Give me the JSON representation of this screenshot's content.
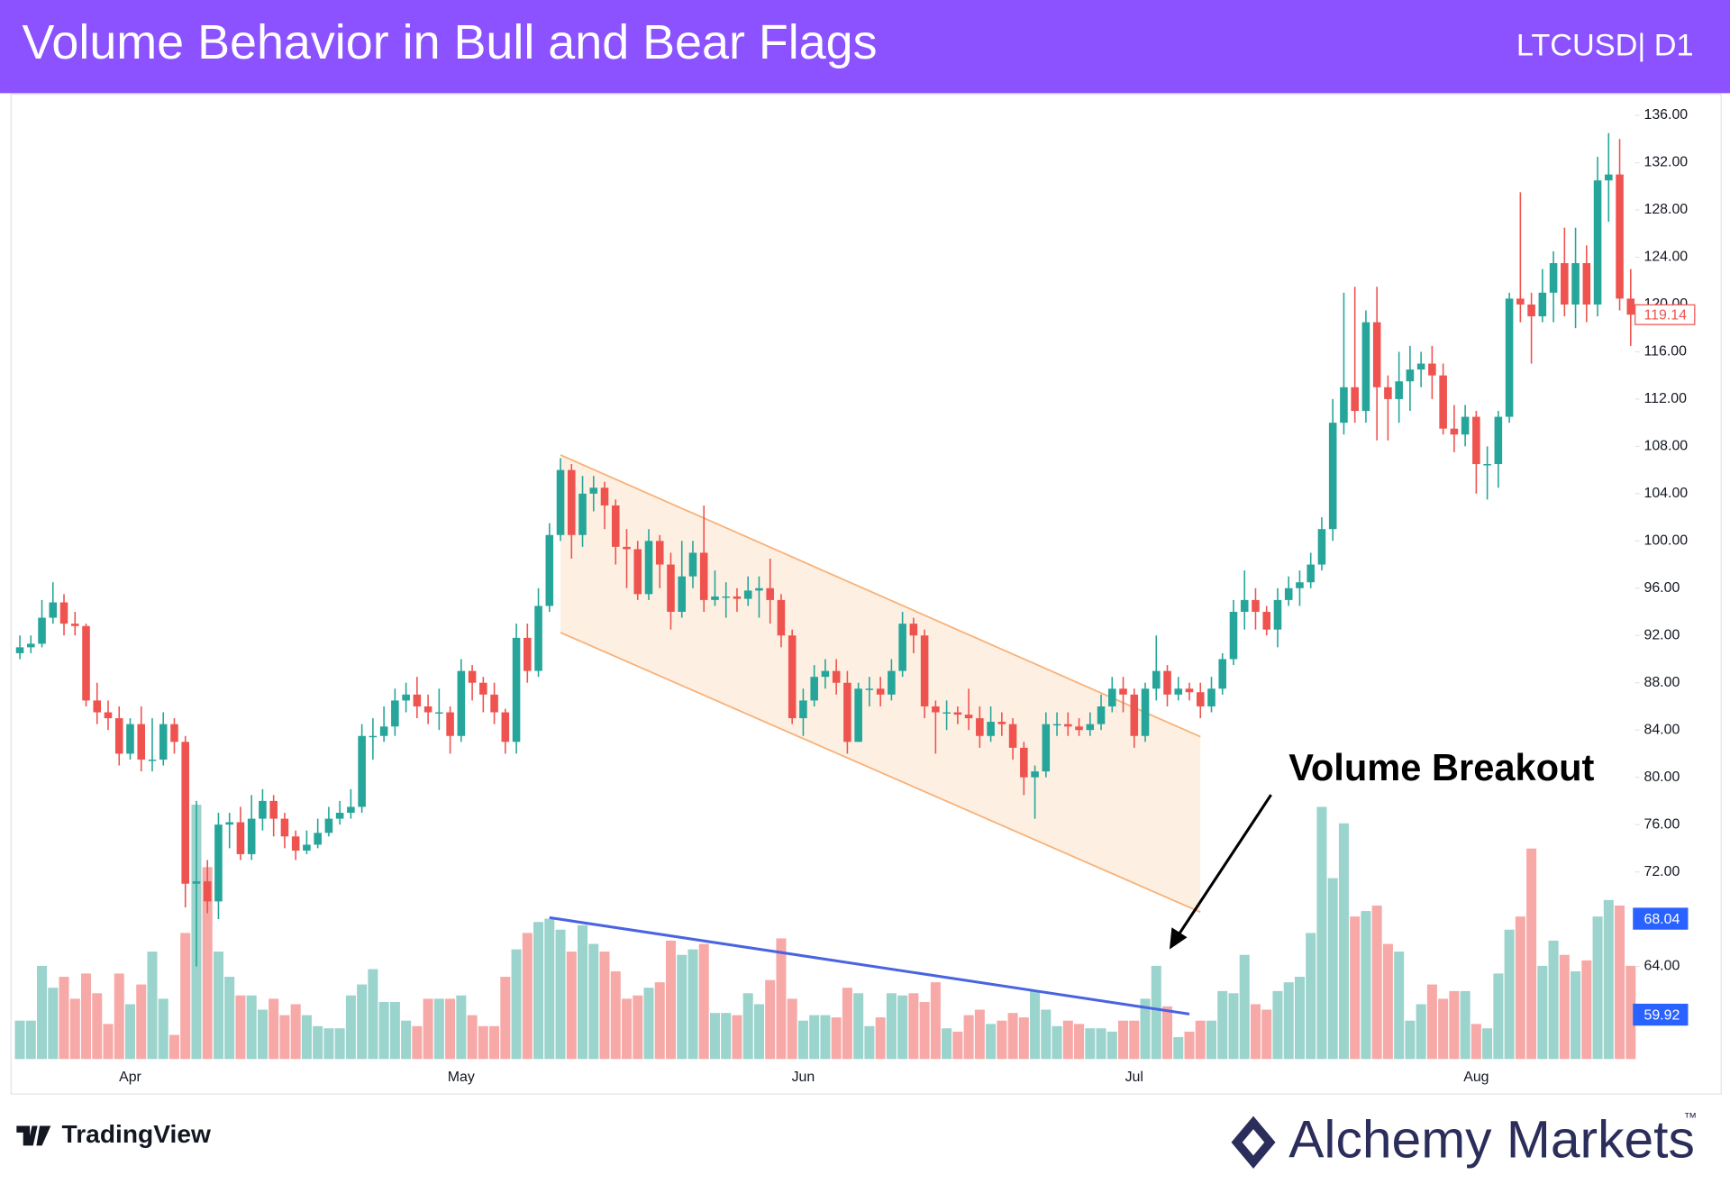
{
  "chart_data": {
    "type": "candlestick",
    "title": "Volume Behavior in Bull and Bear Flags",
    "symbol": "LTCUSD| D1",
    "categories": [
      null,
      null,
      null,
      null,
      null,
      null,
      null,
      null,
      null,
      null,
      "Apr",
      null,
      null,
      null,
      null,
      null,
      null,
      null,
      null,
      null,
      null,
      null,
      null,
      null,
      null,
      null,
      null,
      null,
      null,
      null,
      null,
      null,
      null,
      null,
      null,
      null,
      null,
      null,
      null,
      null,
      "May",
      null,
      null,
      null,
      null,
      null,
      null,
      null,
      null,
      null,
      null,
      null,
      null,
      null,
      null,
      null,
      null,
      null,
      null,
      null,
      null,
      null,
      null,
      null,
      null,
      null,
      null,
      null,
      null,
      null,
      null,
      "Jun",
      null,
      null,
      null,
      null,
      null,
      null,
      null,
      null,
      null,
      null,
      null,
      null,
      null,
      null,
      null,
      null,
      null,
      null,
      null,
      null,
      null,
      null,
      null,
      null,
      null,
      null,
      null,
      null,
      null,
      "Jul",
      null,
      null,
      null,
      null,
      null,
      null,
      null,
      null,
      null,
      null,
      null,
      null,
      null,
      null,
      null,
      null,
      null,
      null,
      null,
      null,
      null,
      null,
      null,
      null,
      null,
      null,
      null,
      null,
      null,
      null,
      "Aug",
      null,
      null,
      null,
      null,
      null,
      null,
      null,
      null,
      null,
      null,
      null,
      null,
      null,
      null
    ],
    "open": [
      90.5,
      91,
      91.3,
      93.5,
      94.8,
      93,
      92.8,
      86.5,
      85.5,
      85,
      82,
      84.5,
      81.5,
      81.5,
      84.5,
      83,
      71,
      71.2,
      69.5,
      76,
      76.2,
      73.5,
      76.5,
      78,
      76.5,
      75,
      73.8,
      74.3,
      75.3,
      76.5,
      77,
      77.5,
      83.5,
      83.5,
      84.3,
      86.5,
      87,
      86,
      85.5,
      85.5,
      83.5,
      89,
      88,
      87,
      85.5,
      83,
      91.8,
      89,
      94.5,
      100.5,
      106,
      100.5,
      104,
      104.5,
      103,
      99.5,
      99.3,
      95.5,
      100,
      98,
      94,
      97,
      99,
      95,
      95.3,
      95.3,
      95.1,
      95.8,
      96,
      95,
      92,
      85,
      86.5,
      88.5,
      89,
      88,
      83,
      87.5,
      87.5,
      87,
      89,
      93,
      92,
      86,
      85.5,
      85.5,
      85.3,
      85,
      83.5,
      84.7,
      84.5,
      82.5,
      80,
      80.5,
      84.5,
      84.5,
      84.3,
      84,
      84.5,
      86,
      87.5,
      87,
      83.5,
      87.5,
      89,
      87,
      87.5,
      87.2,
      86,
      87.5,
      90,
      94,
      95,
      94,
      92.5,
      95,
      96,
      96.5,
      98,
      101,
      110,
      113,
      111,
      118.5,
      113,
      112,
      113.5,
      114.5,
      115,
      114,
      109.5,
      109,
      110.5,
      106.5,
      106.5,
      110.5,
      120.5,
      120,
      119,
      121,
      123.5,
      120,
      123.5,
      120,
      130.5,
      131,
      120.5
    ],
    "high": [
      92,
      92,
      95,
      96.5,
      95.5,
      94,
      93,
      88,
      86.5,
      86,
      85,
      86,
      85,
      85.5,
      85,
      83.5,
      78,
      73,
      77,
      77,
      77.5,
      78.5,
      79,
      78.5,
      77,
      75.5,
      75.5,
      76.5,
      77.5,
      78,
      79,
      84.5,
      85,
      86,
      87.5,
      88,
      88.5,
      87,
      87.5,
      86,
      90,
      89.5,
      88.5,
      88,
      85.8,
      93,
      93,
      96,
      101.5,
      107,
      106.5,
      105.5,
      105.5,
      105,
      103.5,
      101,
      100,
      101,
      100.5,
      99,
      100,
      100,
      103,
      97.5,
      96.5,
      96,
      97,
      97,
      98.5,
      95.5,
      92.5,
      87.5,
      89.5,
      90,
      90,
      89,
      88,
      88.5,
      88.5,
      90,
      94,
      93.5,
      92.5,
      86.5,
      86.5,
      86,
      87.5,
      86,
      86,
      85.5,
      85,
      83,
      81,
      85.5,
      85.5,
      85.5,
      85,
      85.5,
      87,
      88.5,
      88.5,
      87.5,
      88,
      92,
      89.5,
      88.5,
      88,
      88,
      88.5,
      90.5,
      95,
      97.5,
      96,
      94.5,
      96,
      97,
      97.5,
      99,
      102,
      112,
      121,
      121.5,
      119.5,
      121.5,
      114,
      116,
      116.5,
      116,
      116.5,
      115,
      111.5,
      111.5,
      111,
      108,
      111,
      121,
      129.5,
      121,
      123,
      124.5,
      126.5,
      126.5,
      125,
      132.5,
      134.5,
      134,
      123
    ],
    "low": [
      90,
      90.5,
      91,
      93,
      92,
      92,
      86,
      84.5,
      84,
      81,
      81.5,
      80.5,
      80.5,
      81,
      82,
      69,
      64,
      68.5,
      68,
      74,
      73,
      73,
      75.5,
      75,
      74,
      73,
      73.5,
      74,
      75,
      76,
      76.5,
      77,
      81.5,
      83,
      83.5,
      85.5,
      85,
      84.5,
      84,
      82,
      83,
      86.5,
      85.5,
      84.5,
      82,
      82,
      88,
      88.5,
      94,
      100,
      98.5,
      99.5,
      102.5,
      101,
      98,
      96,
      95,
      95,
      96,
      92.5,
      93.5,
      96,
      94,
      94.5,
      93.5,
      94,
      94.5,
      93.5,
      93,
      91,
      84.5,
      83.5,
      86,
      87.5,
      87,
      82,
      83,
      86,
      86,
      86.5,
      88.5,
      90.5,
      85,
      82,
      84,
      84.5,
      84,
      82.5,
      83,
      83.5,
      81.5,
      78.5,
      76.5,
      80,
      83.5,
      83.5,
      83.5,
      83.5,
      84,
      85.5,
      85.5,
      82.5,
      83,
      86.5,
      86,
      86.5,
      86.5,
      85,
      85.5,
      87,
      89.5,
      92.5,
      92.5,
      92,
      91,
      94.5,
      94.5,
      96,
      97.5,
      100,
      109,
      110,
      110,
      108.5,
      108.5,
      110,
      111,
      113,
      112,
      109,
      107.5,
      108,
      104,
      103.5,
      104.5,
      110,
      118.5,
      115,
      118.5,
      118.5,
      119,
      118,
      118.5,
      119,
      127,
      119.5,
      116.5
    ],
    "close": [
      91,
      91.3,
      93.5,
      94.8,
      93,
      92.8,
      86.5,
      85.5,
      85,
      82,
      84.5,
      81.5,
      81.5,
      84.5,
      83,
      71,
      71.2,
      69.5,
      76,
      76.2,
      73.5,
      76.5,
      78,
      76.5,
      75,
      73.8,
      74.3,
      75.3,
      76.5,
      77,
      77.5,
      83.5,
      83.5,
      84.3,
      86.5,
      87,
      86,
      85.5,
      85.5,
      83.5,
      89,
      88,
      87,
      85.5,
      83,
      91.8,
      89,
      94.5,
      100.5,
      106,
      100.5,
      104,
      104.5,
      103,
      99.5,
      99.3,
      95.5,
      100,
      98,
      94,
      97,
      99,
      95,
      95.3,
      95.3,
      95.1,
      95.8,
      96,
      95,
      92,
      85,
      86.5,
      88.5,
      89,
      88,
      83,
      87.5,
      87.5,
      87,
      89,
      93,
      92,
      86,
      85.5,
      85.5,
      85.3,
      85,
      83.5,
      84.7,
      84.5,
      82.5,
      80,
      80.5,
      84.5,
      84.5,
      84.3,
      84,
      84.5,
      86,
      87.5,
      87,
      83.5,
      87.5,
      89,
      87,
      87.5,
      87.2,
      86,
      87.5,
      90,
      94,
      95,
      94,
      92.5,
      95,
      96,
      96.5,
      98,
      101,
      110,
      113,
      111,
      118.5,
      113,
      112,
      113.5,
      114.5,
      115,
      114,
      109.5,
      109,
      110.5,
      106.5,
      106.5,
      110.5,
      120.5,
      120,
      119,
      121,
      123.5,
      120,
      123.5,
      120,
      130.5,
      131,
      120.5,
      119.14
    ],
    "volume": [
      35,
      35,
      85,
      65,
      75,
      55,
      78,
      60,
      32,
      78,
      50,
      68,
      98,
      55,
      22,
      115,
      232,
      175,
      98,
      75,
      58,
      58,
      45,
      55,
      40,
      50,
      40,
      30,
      28,
      28,
      58,
      68,
      82,
      52,
      52,
      35,
      30,
      55,
      55,
      55,
      58,
      40,
      30,
      30,
      75,
      100,
      115,
      125,
      128,
      118,
      98,
      122,
      105,
      98,
      80,
      55,
      58,
      65,
      70,
      108,
      95,
      100,
      105,
      42,
      42,
      40,
      60,
      50,
      72,
      110,
      55,
      35,
      40,
      40,
      38,
      65,
      60,
      30,
      38,
      60,
      58,
      60,
      52,
      70,
      28,
      25,
      40,
      45,
      32,
      35,
      42,
      38,
      62,
      45,
      30,
      35,
      32,
      28,
      28,
      25,
      35,
      35,
      55,
      85,
      48,
      20,
      25,
      35,
      35,
      62,
      60,
      95,
      50,
      45,
      62,
      70,
      75,
      115,
      230,
      165,
      215,
      130,
      135,
      140,
      105,
      98,
      35,
      50,
      68,
      55,
      62,
      62,
      32,
      28,
      78,
      118,
      130,
      192,
      85,
      108,
      95,
      80,
      90,
      130,
      145,
      140,
      85
    ],
    "up_color": "#26a69a",
    "down_color": "#ef5350",
    "up_volume_color": "#9bd3cd",
    "down_volume_color": "#f7a9a7",
    "ylim": [
      53.2,
      137.6
    ],
    "yticks": [
      {
        "value": 64,
        "label": "64.00"
      },
      {
        "value": 72,
        "label": "72.00"
      },
      {
        "value": 76,
        "label": "76.00"
      },
      {
        "value": 80,
        "label": "80.00"
      },
      {
        "value": 84,
        "label": "84.00"
      },
      {
        "value": 88,
        "label": "88.00"
      },
      {
        "value": 92,
        "label": "92.00"
      },
      {
        "value": 96,
        "label": "96.00"
      },
      {
        "value": 100,
        "label": "100.00"
      },
      {
        "value": 104,
        "label": "104.00"
      },
      {
        "value": 108,
        "label": "108.00"
      },
      {
        "value": 112,
        "label": "112.00"
      },
      {
        "value": 116,
        "label": "116.00"
      },
      {
        "value": 120,
        "label": "120.00"
      },
      {
        "value": 124,
        "label": "124.00"
      },
      {
        "value": 128,
        "label": "128.00"
      },
      {
        "value": 132,
        "label": "132.00"
      },
      {
        "value": 136,
        "label": "136.00"
      }
    ],
    "last_price": 119.14,
    "marker_values": [
      68.04,
      59.92
    ],
    "annotation": "Volume Breakout"
  },
  "footer": {
    "left": "TradingView",
    "right": "Alchemy Markets",
    "trademark": "™"
  }
}
